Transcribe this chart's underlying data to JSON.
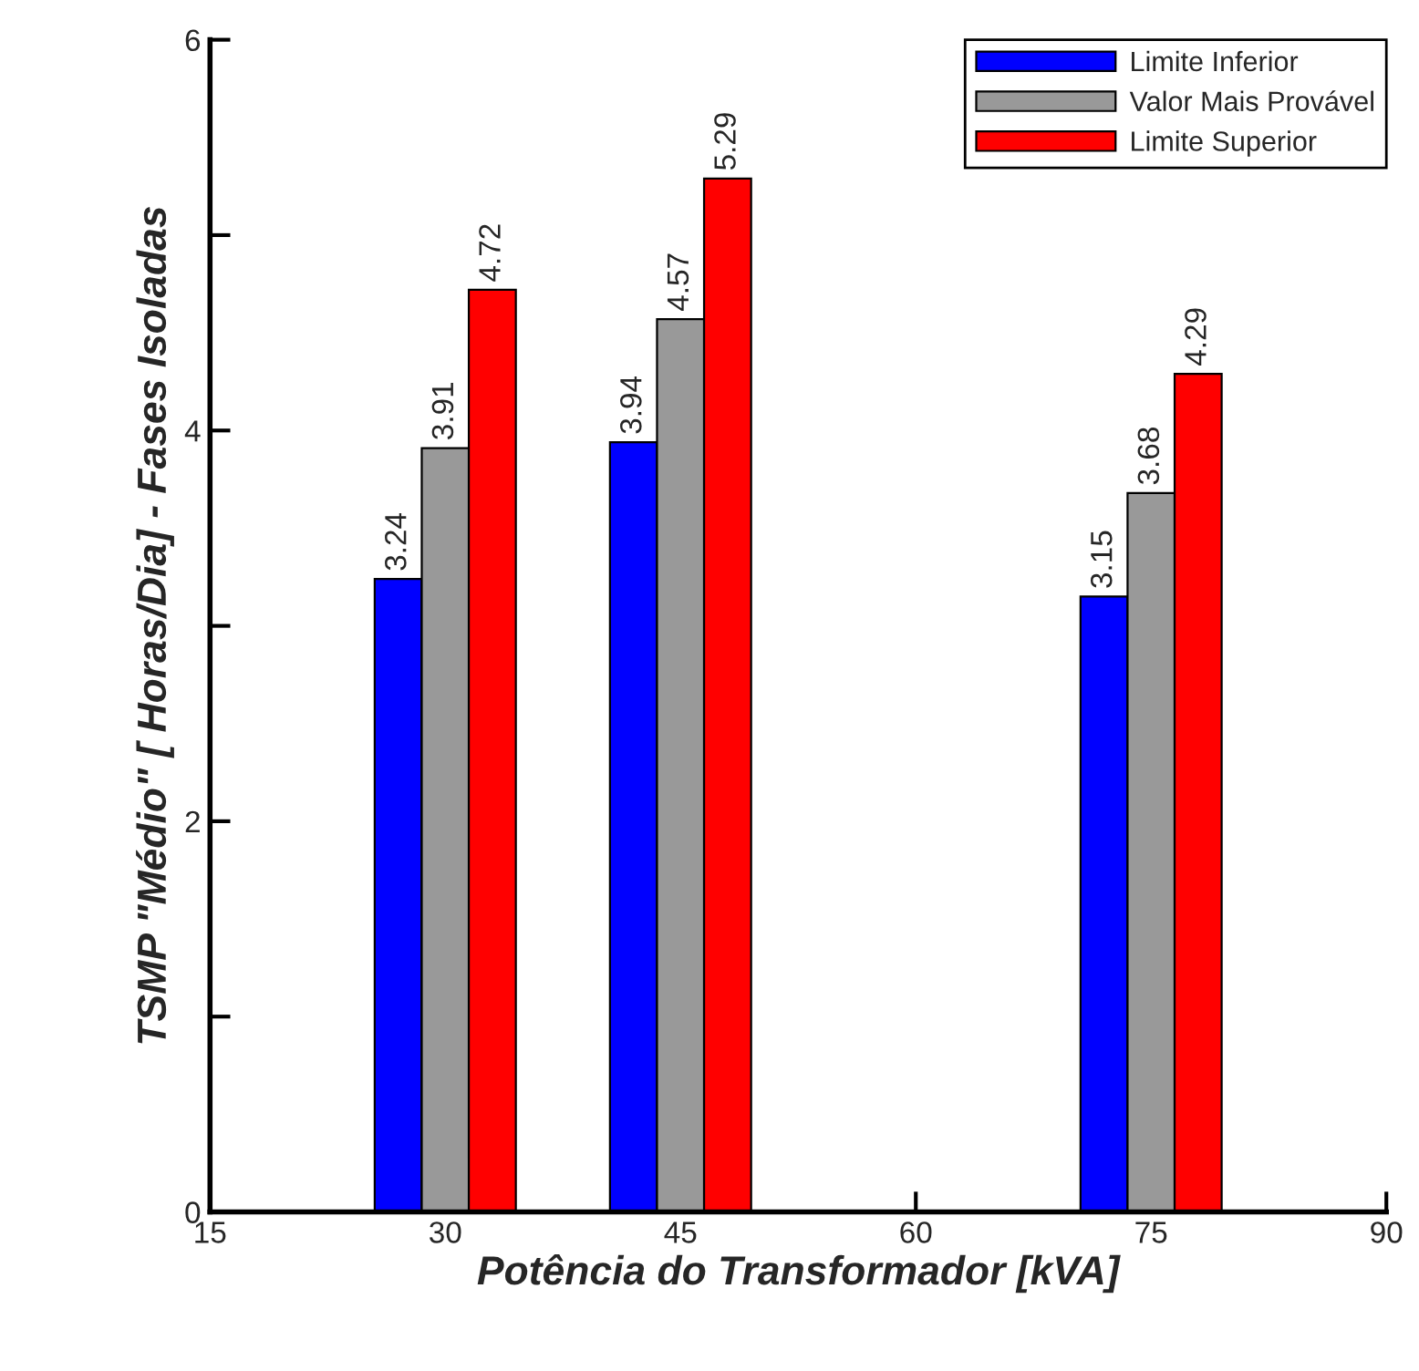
{
  "chart_data": {
    "type": "bar",
    "xlabel": "Potência do Transformador [kVA]",
    "ylabel": "TSMP \"Médio\" [ Horas/Dia] - Fases Isoladas",
    "x": [
      30,
      45,
      75
    ],
    "series": [
      {
        "name": "Limite Inferior",
        "color": "#0000ff",
        "values": [
          3.24,
          3.94,
          3.15
        ]
      },
      {
        "name": "Valor Mais Provável",
        "color": "#999999",
        "values": [
          3.91,
          4.57,
          3.68
        ]
      },
      {
        "name": "Limite Superior",
        "color": "#ff0000",
        "values": [
          4.72,
          5.29,
          4.29
        ]
      }
    ],
    "xlim": [
      15,
      90
    ],
    "xticks": [
      15,
      30,
      45,
      60,
      75,
      90
    ],
    "ylim": [
      0,
      6
    ],
    "yticks": [
      0,
      {
        "value": 1,
        "label": null
      },
      2,
      {
        "value": 3,
        "label": null
      },
      4,
      {
        "value": 5,
        "label": null
      },
      6
    ],
    "data_labels": true,
    "legend": "top right",
    "grid": false
  }
}
